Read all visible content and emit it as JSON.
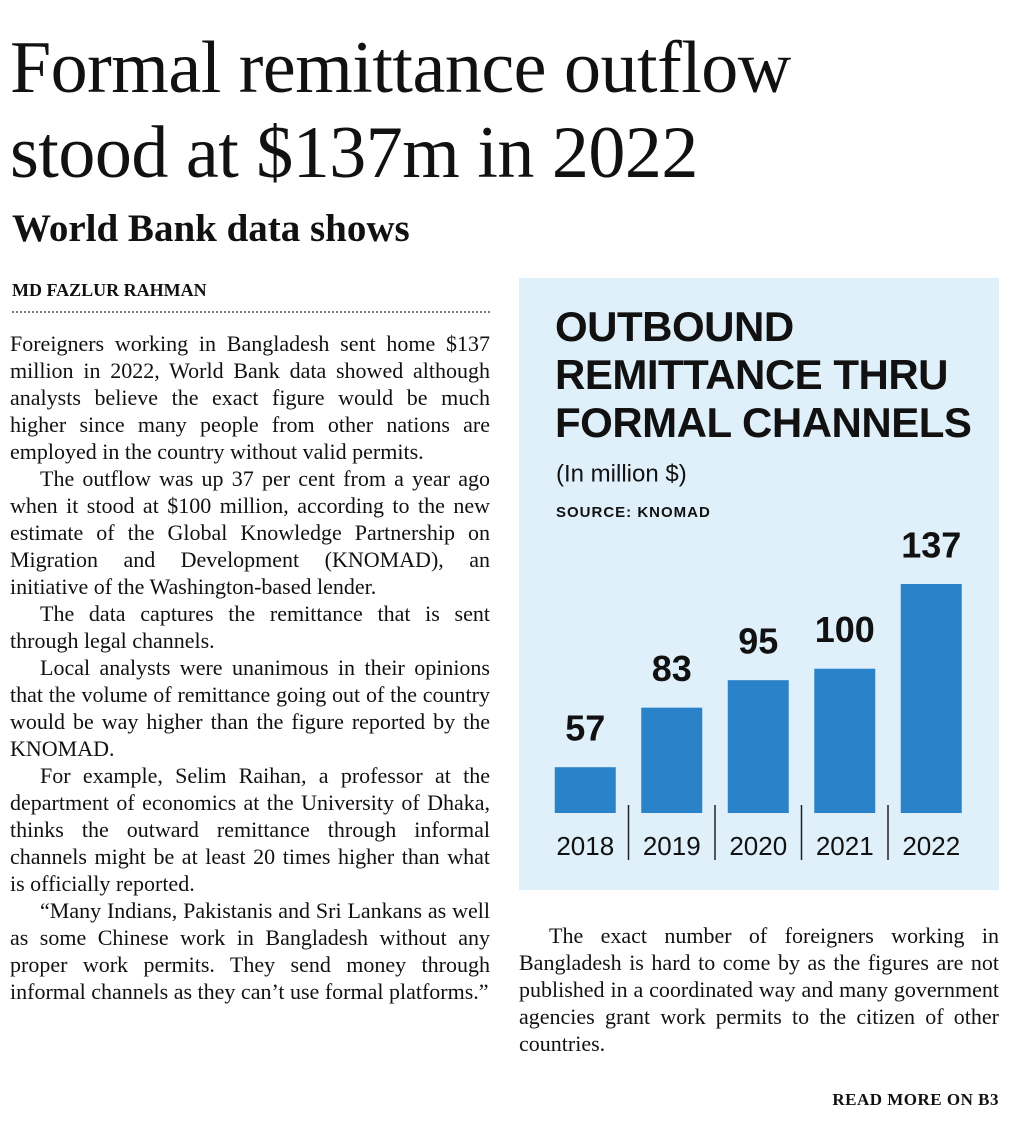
{
  "headline": [
    "Formal remittance outflow",
    "stood at $137m in 2022"
  ],
  "subheadline": "World Bank data shows",
  "byline": "MD FAZLUR RAHMAN",
  "left_paragraphs": [
    "Foreigners working in Bangladesh sent home $137 million in 2022, World Bank data showed although analysts believe the exact figure would be much higher since many people from other nations are employed in the country without valid permits.",
    "The outflow was up 37 per cent from a year ago when it stood at $100 million, according to the new estimate of the Global Knowledge Partnership on Migration and Development (KNOMAD), an initiative of the Washington-based lender.",
    "The data captures the remittance that is sent through legal channels.",
    "Local analysts were unanimous in their opinions that the volume of remittance going out of the country would be way higher than the figure reported by the KNOMAD.",
    "For example, Selim Raihan, a professor at the department of economics at the University of Dhaka, thinks the outward remittance through informal channels might be at least 20 times higher than what is officially reported.",
    "“Many Indians, Pakistanis and Sri Lankans as well as some Chinese work in Bangladesh without any proper work permits. They send money through informal channels as they can’t use formal platforms.”"
  ],
  "chart_data": {
    "type": "bar",
    "title": [
      "OUTBOUND",
      "REMITTANCE THRU",
      "FORMAL CHANNELS"
    ],
    "subtitle": "(In million $)",
    "source": "SOURCE: KNOMAD",
    "categories": [
      "2018",
      "2019",
      "2020",
      "2021",
      "2022"
    ],
    "values": [
      57,
      83,
      95,
      100,
      137
    ],
    "color": "#2a82c9",
    "ylim": [
      37,
      137
    ]
  },
  "right_paragraphs": [
    "The exact number of foreigners working in Bangladesh is hard to come by as the figures are not published in a coordinated way and many government agencies grant work permits to the citizen of other countries."
  ],
  "read_more": "READ MORE ON B3"
}
